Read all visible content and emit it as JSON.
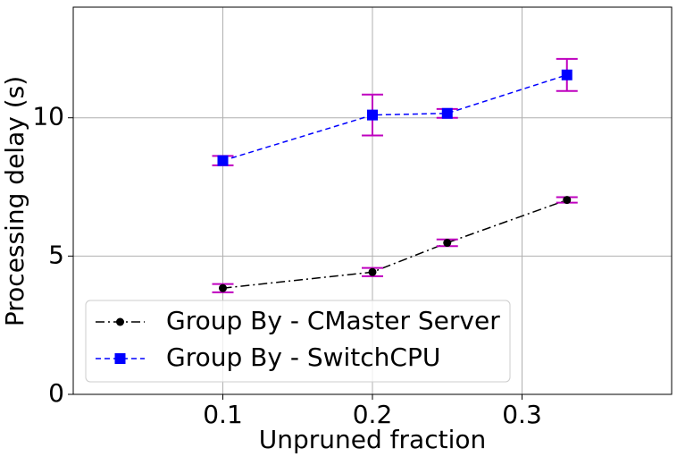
{
  "chart_data": {
    "type": "line",
    "x_label": "Unpruned fraction",
    "y_label": "Processing delay (s)",
    "x": [
      0.1,
      0.2,
      0.25,
      0.33
    ],
    "series": [
      {
        "name": "Group By - CMaster Server",
        "color": "#000000",
        "marker": "circle",
        "linestyle": "dashdot",
        "values": [
          3.84,
          4.42,
          5.48,
          7.03
        ],
        "errors": [
          0.15,
          0.15,
          0.12,
          0.1
        ]
      },
      {
        "name": "Group By - SwitchCPU",
        "color": "#0000ff",
        "marker": "square",
        "linestyle": "dashed",
        "values": [
          8.45,
          10.1,
          10.16,
          11.55
        ],
        "errors": [
          0.17,
          0.74,
          0.16,
          0.58
        ]
      }
    ],
    "error_color": "#bf00bf",
    "xlim": [
      0,
      0.4
    ],
    "ylim": [
      0,
      14
    ],
    "xticks": [
      0.1,
      0.2,
      0.3
    ],
    "yticks": [
      0,
      5,
      10
    ],
    "grid": true,
    "legend": "lower left"
  }
}
